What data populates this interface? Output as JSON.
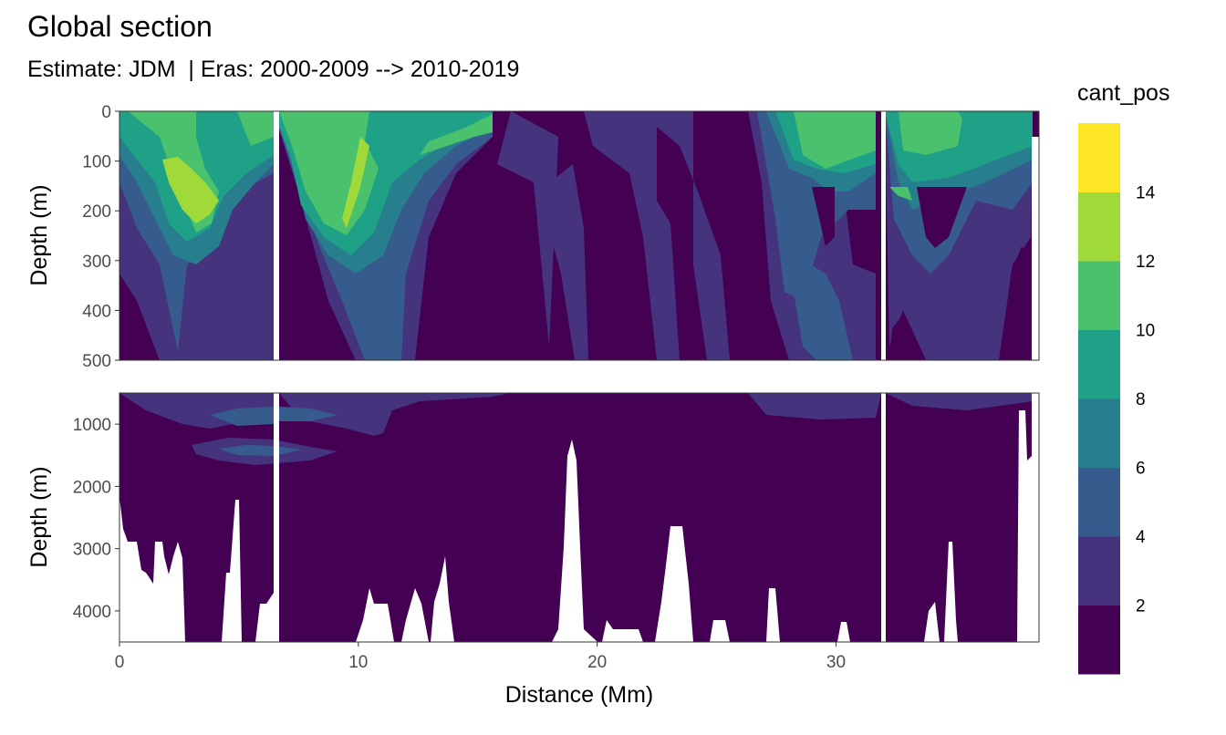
{
  "chart_data": {
    "type": "heatmap",
    "title": "Global section",
    "subtitle": "Estimate: JDM  | Eras: 2000-2009 --> 2010-2019",
    "xlabel": "Distance (Mm)",
    "ylabel": "Depth (m)",
    "xlim": [
      0,
      38.5
    ],
    "xticks": [
      "0",
      "10",
      "20",
      "30"
    ],
    "grid": true,
    "legend_position": "right",
    "panels": [
      {
        "name": "upper",
        "ylim": [
          500,
          0
        ],
        "yticks": [
          "0",
          "100",
          "200",
          "300",
          "400",
          "500"
        ]
      },
      {
        "name": "lower",
        "ylim": [
          4500,
          500
        ],
        "yticks": [
          "1000",
          "2000",
          "3000",
          "4000"
        ]
      }
    ],
    "legend": {
      "title": "cant_pos",
      "breaks": [
        "2",
        "4",
        "6",
        "8",
        "10",
        "12",
        "14"
      ],
      "colors": [
        "#440154",
        "#46337E",
        "#365C8D",
        "#277F8E",
        "#1FA187",
        "#4AC16D",
        "#9FDA3A",
        "#FDE725"
      ]
    },
    "gaps_distance_mm": [
      6.6,
      32.1
    ],
    "colors": {
      "panel_border": "#333333",
      "grid": "#ebebeb",
      "tick_text": "#4d4d4d"
    }
  }
}
